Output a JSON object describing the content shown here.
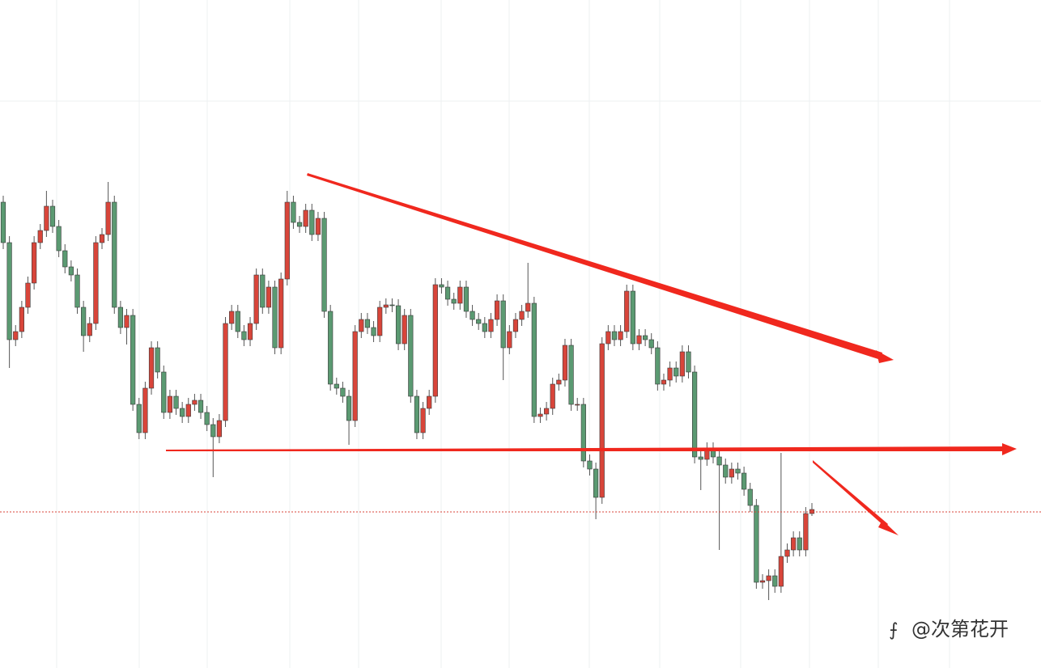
{
  "chart_data": {
    "type": "candlestick",
    "up_color": "#d8453a",
    "down_color": "#5b9a72",
    "wick_color": "#555555",
    "ylim": [
      0,
      826
    ],
    "open": [
      576,
      526,
      406,
      416,
      446,
      476,
      526,
      541,
      571,
      546,
      516,
      496,
      486,
      446,
      411,
      426,
      526,
      536,
      576,
      446,
      421,
      436,
      326,
      291,
      346,
      396,
      366,
      316,
      336,
      321,
      311,
      326,
      331,
      316,
      301,
      286,
      306,
      426,
      441,
      416,
      406,
      426,
      486,
      446,
      471,
      396,
      481,
      576,
      551,
      546,
      566,
      536,
      556,
      441,
      351,
      346,
      336,
      306,
      416,
      431,
      421,
      411,
      446,
      449,
      448,
      401,
      436,
      336,
      291,
      321,
      336,
      474,
      471,
      456,
      451,
      471,
      441,
      431,
      426,
      416,
      431,
      454,
      396,
      416,
      431,
      441,
      451,
      311,
      314,
      321,
      351,
      356,
      399,
      326,
      326,
      256,
      246,
      211,
      401,
      416,
      406,
      416,
      466,
      401,
      411,
      406,
      396,
      351,
      356,
      371,
      361,
      391,
      366,
      261,
      258,
      271,
      261,
      251,
      236,
      246,
      241,
      221,
      201,
      106,
      108,
      114,
      101,
      138,
      146,
      161,
      146,
      191
    ],
    "high": [
      584,
      534,
      424,
      454,
      484,
      534,
      549,
      590,
      579,
      554,
      524,
      504,
      494,
      454,
      434,
      534,
      544,
      601,
      584,
      454,
      444,
      444,
      334,
      354,
      404,
      404,
      374,
      344,
      344,
      329,
      334,
      339,
      339,
      324,
      309,
      314,
      434,
      449,
      449,
      424,
      434,
      494,
      494,
      479,
      479,
      489,
      590,
      584,
      559,
      574,
      574,
      564,
      564,
      449,
      359,
      354,
      344,
      424,
      439,
      439,
      429,
      454,
      457,
      457,
      456,
      444,
      444,
      344,
      329,
      344,
      482,
      482,
      479,
      464,
      479,
      479,
      449,
      439,
      434,
      439,
      462,
      462,
      424,
      439,
      449,
      501,
      459,
      322,
      329,
      359,
      364,
      407,
      407,
      334,
      334,
      264,
      254,
      409,
      424,
      424,
      424,
      474,
      474,
      419,
      419,
      414,
      404,
      364,
      379,
      379,
      399,
      399,
      374,
      269,
      279,
      279,
      269,
      259,
      254,
      254,
      249,
      229,
      209,
      116,
      122,
      122,
      266,
      154,
      169,
      169,
      199,
      204
    ],
    "low": [
      518,
      371,
      398,
      408,
      438,
      468,
      518,
      533,
      538,
      508,
      488,
      478,
      438,
      391,
      403,
      418,
      518,
      528,
      438,
      413,
      400,
      318,
      283,
      283,
      338,
      358,
      308,
      308,
      313,
      303,
      303,
      318,
      308,
      293,
      236,
      278,
      298,
      418,
      408,
      398,
      398,
      418,
      438,
      438,
      388,
      388,
      473,
      543,
      538,
      538,
      528,
      528,
      433,
      343,
      338,
      328,
      276,
      298,
      408,
      413,
      403,
      403,
      438,
      440,
      393,
      393,
      328,
      283,
      283,
      313,
      328,
      463,
      448,
      443,
      443,
      433,
      423,
      418,
      408,
      408,
      423,
      356,
      388,
      408,
      423,
      433,
      303,
      303,
      306,
      313,
      343,
      348,
      318,
      318,
      248,
      238,
      184,
      203,
      393,
      398,
      398,
      408,
      393,
      393,
      398,
      388,
      343,
      343,
      348,
      353,
      353,
      358,
      253,
      220,
      250,
      253,
      146,
      228,
      228,
      233,
      213,
      193,
      98,
      98,
      84,
      93,
      93,
      130,
      138,
      138,
      138,
      188
    ],
    "close": [
      526,
      406,
      416,
      446,
      476,
      526,
      541,
      571,
      546,
      516,
      496,
      486,
      446,
      411,
      426,
      526,
      536,
      576,
      446,
      421,
      436,
      326,
      291,
      346,
      396,
      366,
      316,
      336,
      321,
      311,
      326,
      331,
      316,
      301,
      286,
      306,
      426,
      441,
      416,
      406,
      426,
      486,
      446,
      471,
      396,
      481,
      576,
      551,
      546,
      566,
      536,
      556,
      441,
      351,
      346,
      336,
      306,
      416,
      431,
      421,
      411,
      446,
      449,
      448,
      401,
      436,
      336,
      291,
      321,
      336,
      474,
      471,
      456,
      451,
      471,
      441,
      431,
      426,
      416,
      431,
      454,
      396,
      416,
      431,
      441,
      451,
      311,
      314,
      321,
      351,
      356,
      399,
      326,
      326,
      256,
      246,
      211,
      401,
      416,
      406,
      416,
      466,
      401,
      411,
      406,
      396,
      351,
      356,
      371,
      361,
      391,
      366,
      261,
      258,
      271,
      261,
      251,
      236,
      246,
      241,
      221,
      201,
      106,
      108,
      114,
      101,
      138,
      146,
      161,
      146,
      191,
      196
    ]
  },
  "watermark": "@次第花开"
}
